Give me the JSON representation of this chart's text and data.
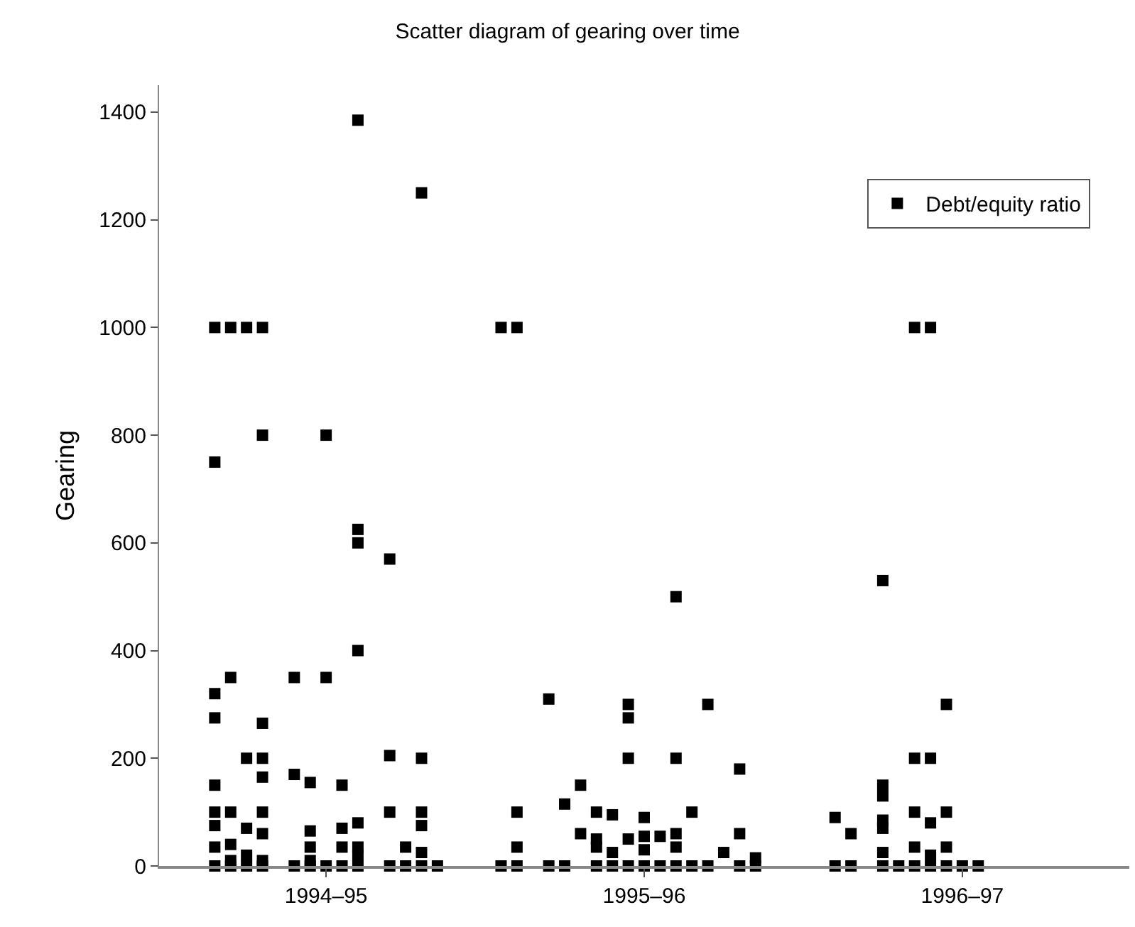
{
  "chart_data": {
    "type": "scatter",
    "title": "Scatter diagram of gearing over time",
    "ylabel": "Gearing",
    "categories": [
      null,
      null,
      null,
      null,
      null,
      null,
      null,
      null,
      null,
      null,
      "1994–95",
      null,
      null,
      null,
      null,
      null,
      null,
      null,
      null,
      null,
      null,
      null,
      null,
      null,
      null,
      null,
      null,
      null,
      null,
      null,
      "1995–96",
      null,
      null,
      null,
      null,
      null,
      null,
      null,
      null,
      null,
      null,
      null,
      null,
      null,
      null,
      null,
      null,
      null,
      null,
      null,
      "1996–97",
      null,
      null,
      null,
      null,
      null,
      null,
      null,
      null,
      null,
      null
    ],
    "ylim": [
      0,
      1450
    ],
    "yticks": [
      0,
      200,
      400,
      600,
      800,
      1000,
      1200,
      1400
    ],
    "legend": "top right",
    "marker": "square",
    "series": [
      {
        "name": "Debt/equity ratio",
        "color": "#000000",
        "values": [
          null,
          null,
          null,
          1000,
          1000,
          1000,
          1000,
          null,
          350,
          155,
          800,
          150,
          1385,
          null,
          570,
          35,
          1250,
          0,
          null,
          null,
          null,
          1000,
          1000,
          null,
          310,
          115,
          150,
          100,
          95,
          300,
          90,
          55,
          500,
          100,
          300,
          25,
          180,
          15,
          null,
          null,
          null,
          null,
          90,
          60,
          null,
          530,
          0,
          1000,
          1000,
          300,
          0,
          0,
          null,
          null,
          null,
          null,
          null,
          null,
          null,
          null,
          null
        ]
      },
      {
        "color": "#000000",
        "values": [
          null,
          null,
          null,
          750,
          350,
          200,
          800,
          null,
          170,
          65,
          350,
          70,
          625,
          null,
          205,
          0,
          200,
          null,
          null,
          null,
          null,
          0,
          100,
          null,
          0,
          0,
          60,
          50,
          25,
          275,
          55,
          0,
          200,
          0,
          0,
          null,
          60,
          0,
          null,
          null,
          null,
          null,
          0,
          0,
          null,
          150,
          null,
          200,
          200,
          100,
          null,
          null,
          null,
          null,
          null,
          null,
          null,
          null,
          null,
          null,
          null
        ]
      },
      {
        "color": "#000000",
        "values": [
          null,
          null,
          null,
          320,
          100,
          70,
          265,
          null,
          0,
          35,
          0,
          35,
          600,
          null,
          100,
          null,
          100,
          null,
          null,
          null,
          null,
          null,
          35,
          null,
          null,
          null,
          null,
          35,
          0,
          200,
          30,
          null,
          60,
          null,
          null,
          null,
          0,
          null,
          null,
          null,
          null,
          null,
          null,
          null,
          null,
          130,
          null,
          100,
          80,
          35,
          null,
          null,
          null,
          null,
          null,
          null,
          null,
          null,
          null,
          null,
          null
        ]
      },
      {
        "color": "#000000",
        "values": [
          null,
          null,
          null,
          275,
          40,
          20,
          200,
          null,
          null,
          10,
          null,
          0,
          400,
          null,
          0,
          null,
          75,
          null,
          null,
          null,
          null,
          null,
          0,
          null,
          null,
          null,
          null,
          0,
          null,
          50,
          0,
          null,
          35,
          null,
          null,
          null,
          null,
          null,
          null,
          null,
          null,
          null,
          null,
          null,
          null,
          85,
          null,
          35,
          20,
          0,
          null,
          null,
          null,
          null,
          null,
          null,
          null,
          null,
          null,
          null,
          null
        ]
      },
      {
        "color": "#000000",
        "values": [
          null,
          null,
          null,
          150,
          10,
          0,
          165,
          null,
          null,
          0,
          null,
          null,
          80,
          null,
          null,
          null,
          25,
          null,
          null,
          null,
          null,
          null,
          null,
          null,
          null,
          null,
          null,
          null,
          null,
          0,
          null,
          null,
          0,
          null,
          null,
          null,
          null,
          null,
          null,
          null,
          null,
          null,
          null,
          null,
          null,
          70,
          null,
          0,
          0,
          null,
          null,
          null,
          null,
          null,
          null,
          null,
          null,
          null,
          null,
          null,
          null
        ]
      },
      {
        "color": "#000000",
        "values": [
          null,
          null,
          null,
          100,
          0,
          null,
          100,
          null,
          null,
          null,
          null,
          null,
          35,
          null,
          null,
          null,
          0,
          null,
          null,
          null,
          null,
          null,
          null,
          null,
          null,
          null,
          null,
          null,
          null,
          null,
          null,
          null,
          null,
          null,
          null,
          null,
          null,
          null,
          null,
          null,
          null,
          null,
          null,
          null,
          null,
          25,
          null,
          null,
          null,
          null,
          null,
          null,
          null,
          null,
          null,
          null,
          null,
          null,
          null,
          null,
          null
        ]
      },
      {
        "color": "#000000",
        "values": [
          null,
          null,
          null,
          75,
          null,
          null,
          60,
          null,
          null,
          null,
          null,
          null,
          20,
          null,
          null,
          null,
          null,
          null,
          null,
          null,
          null,
          null,
          null,
          null,
          null,
          null,
          null,
          null,
          null,
          null,
          null,
          null,
          null,
          null,
          null,
          null,
          null,
          null,
          null,
          null,
          null,
          null,
          null,
          null,
          null,
          0,
          null,
          null,
          null,
          null,
          null,
          null,
          null,
          null,
          null,
          null,
          null,
          null,
          null,
          null,
          null
        ]
      },
      {
        "color": "#000000",
        "values": [
          null,
          null,
          null,
          35,
          null,
          null,
          10,
          null,
          null,
          null,
          null,
          null,
          0,
          null,
          null,
          null,
          null,
          null,
          null,
          null,
          null,
          null,
          null,
          null,
          null,
          null,
          null,
          null,
          null,
          null,
          null,
          null,
          null,
          null,
          null,
          null,
          null,
          null,
          null,
          null,
          null,
          null,
          null,
          null,
          null,
          null,
          null,
          null,
          null,
          null,
          null,
          null,
          null,
          null,
          null,
          null,
          null,
          null,
          null,
          null,
          null
        ]
      },
      {
        "color": "#000000",
        "values": [
          null,
          null,
          null,
          0,
          null,
          null,
          0,
          null,
          null,
          null,
          null,
          null,
          null,
          null,
          null,
          null,
          null,
          null,
          null,
          null,
          null,
          null,
          null,
          null,
          null,
          null,
          null,
          null,
          null,
          null,
          null,
          null,
          null,
          null,
          null,
          null,
          null,
          null,
          null,
          null,
          null,
          null,
          null,
          null,
          null,
          null,
          null,
          null,
          null,
          null,
          null,
          null,
          null,
          null,
          null,
          null,
          null,
          null,
          null,
          null,
          null
        ]
      }
    ]
  }
}
